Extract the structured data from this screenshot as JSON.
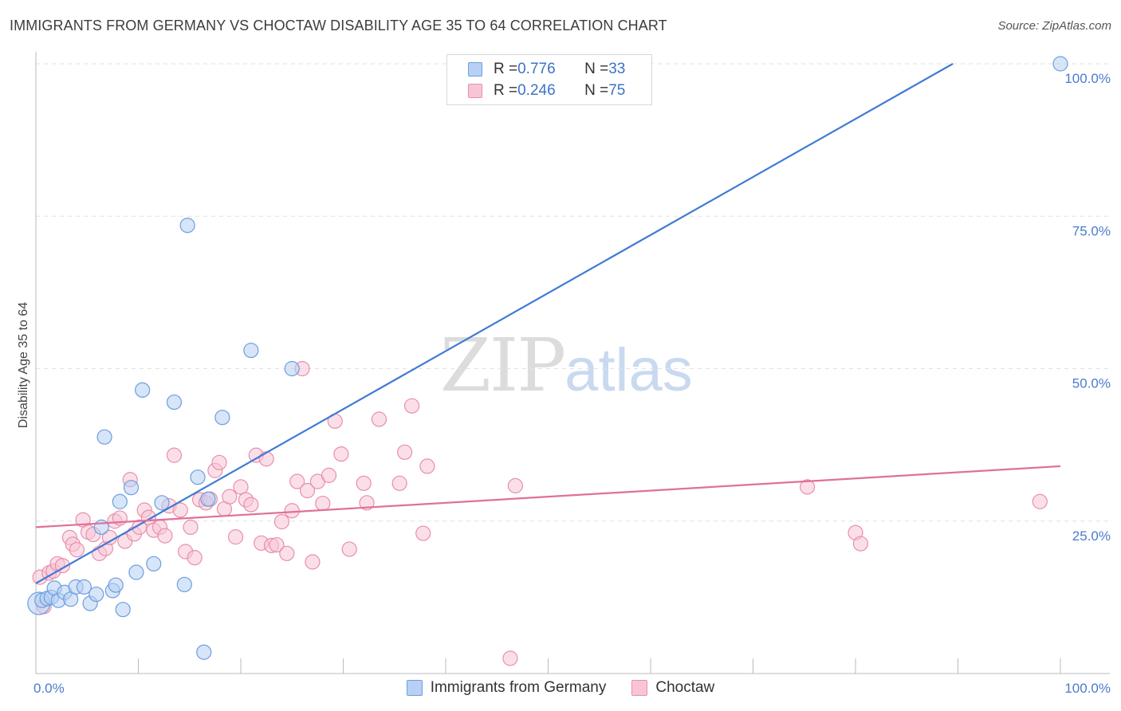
{
  "title": "IMMIGRANTS FROM GERMANY VS CHOCTAW DISABILITY AGE 35 TO 64 CORRELATION CHART",
  "source": "Source: ZipAtlas.com",
  "watermark": {
    "zip": "ZIP",
    "atlas": "atlas"
  },
  "legend": {
    "rows": [
      {
        "r_label": "R = ",
        "r_value": "0.776",
        "n_label": "N = ",
        "n_value": "33"
      },
      {
        "r_label": "R = ",
        "r_value": "0.246",
        "n_label": "N = ",
        "n_value": "75"
      }
    ]
  },
  "bottom_legend": [
    "Immigrants from Germany",
    "Choctaw"
  ],
  "colors": {
    "blue_fill": "#b7d0f3",
    "blue_stroke": "#6c9ee0",
    "blue_line": "#3f7bd4",
    "pink_fill": "#f8c5d6",
    "pink_stroke": "#e78fad",
    "pink_line": "#e0709a"
  },
  "chart_data": {
    "type": "scatter",
    "title": "IMMIGRANTS FROM GERMANY VS CHOCTAW DISABILITY AGE 35 TO 64 CORRELATION CHART",
    "xlabel": "",
    "ylabel": "Disability Age 35 to 64",
    "xlim": [
      0,
      100
    ],
    "ylim": [
      0,
      100
    ],
    "x_tick_labels": [
      "0.0%",
      "100.0%"
    ],
    "y_ticks": [
      25,
      50,
      75,
      100
    ],
    "y_tick_labels": [
      "25.0%",
      "50.0%",
      "75.0%",
      "100.0%"
    ],
    "grid": true,
    "series": [
      {
        "name": "Immigrants from Germany",
        "r": 0.776,
        "n": 33,
        "trend": {
          "x": [
            0,
            89.5
          ],
          "y": [
            14.8,
            100
          ]
        },
        "points": [
          [
            0.3,
            11.5
          ],
          [
            0.6,
            12.0
          ],
          [
            1.1,
            12.3
          ],
          [
            1.5,
            12.5
          ],
          [
            1.8,
            14.0
          ],
          [
            2.2,
            12.0
          ],
          [
            2.8,
            13.3
          ],
          [
            3.4,
            12.2
          ],
          [
            3.9,
            14.2
          ],
          [
            4.7,
            14.2
          ],
          [
            5.3,
            11.5
          ],
          [
            5.9,
            13.0
          ],
          [
            6.4,
            24.0
          ],
          [
            6.7,
            38.8
          ],
          [
            7.5,
            13.6
          ],
          [
            7.8,
            14.5
          ],
          [
            8.2,
            28.2
          ],
          [
            8.5,
            10.5
          ],
          [
            9.3,
            30.5
          ],
          [
            9.8,
            16.6
          ],
          [
            10.4,
            46.5
          ],
          [
            11.5,
            18.0
          ],
          [
            12.3,
            28.0
          ],
          [
            13.5,
            44.5
          ],
          [
            14.5,
            14.6
          ],
          [
            14.8,
            73.5
          ],
          [
            15.8,
            32.2
          ],
          [
            16.4,
            3.5
          ],
          [
            16.8,
            28.6
          ],
          [
            18.2,
            42.0
          ],
          [
            21.0,
            53.0
          ],
          [
            25.0,
            50.0
          ],
          [
            100.0,
            100.0
          ]
        ]
      },
      {
        "name": "Choctaw",
        "r": 0.246,
        "n": 75,
        "trend": {
          "x": [
            0,
            100
          ],
          "y": [
            24.0,
            34.0
          ]
        },
        "points": [
          [
            0.4,
            15.8
          ],
          [
            0.8,
            11.0
          ],
          [
            1.3,
            16.5
          ],
          [
            1.7,
            16.8
          ],
          [
            2.1,
            18.0
          ],
          [
            2.6,
            17.7
          ],
          [
            3.3,
            22.3
          ],
          [
            3.6,
            21.2
          ],
          [
            4.0,
            20.3
          ],
          [
            4.6,
            25.2
          ],
          [
            5.1,
            23.2
          ],
          [
            5.6,
            22.8
          ],
          [
            6.2,
            19.7
          ],
          [
            6.8,
            20.5
          ],
          [
            7.2,
            22.3
          ],
          [
            7.7,
            25.0
          ],
          [
            8.2,
            25.5
          ],
          [
            8.7,
            21.7
          ],
          [
            9.2,
            31.8
          ],
          [
            9.6,
            22.9
          ],
          [
            10.1,
            24.0
          ],
          [
            10.6,
            26.8
          ],
          [
            11.0,
            25.6
          ],
          [
            11.5,
            23.5
          ],
          [
            12.1,
            24.0
          ],
          [
            12.6,
            22.6
          ],
          [
            13.0,
            27.5
          ],
          [
            13.5,
            35.8
          ],
          [
            14.1,
            26.8
          ],
          [
            14.6,
            20.0
          ],
          [
            15.1,
            24.0
          ],
          [
            15.5,
            19.0
          ],
          [
            16.0,
            28.5
          ],
          [
            16.6,
            28.0
          ],
          [
            17.0,
            28.6
          ],
          [
            17.5,
            33.3
          ],
          [
            17.9,
            34.6
          ],
          [
            18.4,
            27.0
          ],
          [
            18.9,
            29.0
          ],
          [
            19.5,
            22.4
          ],
          [
            20.0,
            30.6
          ],
          [
            20.5,
            28.5
          ],
          [
            21.0,
            27.7
          ],
          [
            21.5,
            35.8
          ],
          [
            22.0,
            21.4
          ],
          [
            22.5,
            35.2
          ],
          [
            23.0,
            21.0
          ],
          [
            23.5,
            21.1
          ],
          [
            24.0,
            24.9
          ],
          [
            24.5,
            19.7
          ],
          [
            25.0,
            26.7
          ],
          [
            25.5,
            31.5
          ],
          [
            26.0,
            50.0
          ],
          [
            26.5,
            30.0
          ],
          [
            27.0,
            18.3
          ],
          [
            27.5,
            31.5
          ],
          [
            28.0,
            27.9
          ],
          [
            28.6,
            32.5
          ],
          [
            29.2,
            41.4
          ],
          [
            29.8,
            36.0
          ],
          [
            30.6,
            20.4
          ],
          [
            32.0,
            31.2
          ],
          [
            32.3,
            28.0
          ],
          [
            33.5,
            41.7
          ],
          [
            35.5,
            31.2
          ],
          [
            36.0,
            36.3
          ],
          [
            36.7,
            43.9
          ],
          [
            37.8,
            23.0
          ],
          [
            38.2,
            34.0
          ],
          [
            46.3,
            2.5
          ],
          [
            46.8,
            30.8
          ],
          [
            75.3,
            30.6
          ],
          [
            80.0,
            23.1
          ],
          [
            80.5,
            21.3
          ],
          [
            98.0,
            28.2
          ]
        ]
      }
    ]
  }
}
